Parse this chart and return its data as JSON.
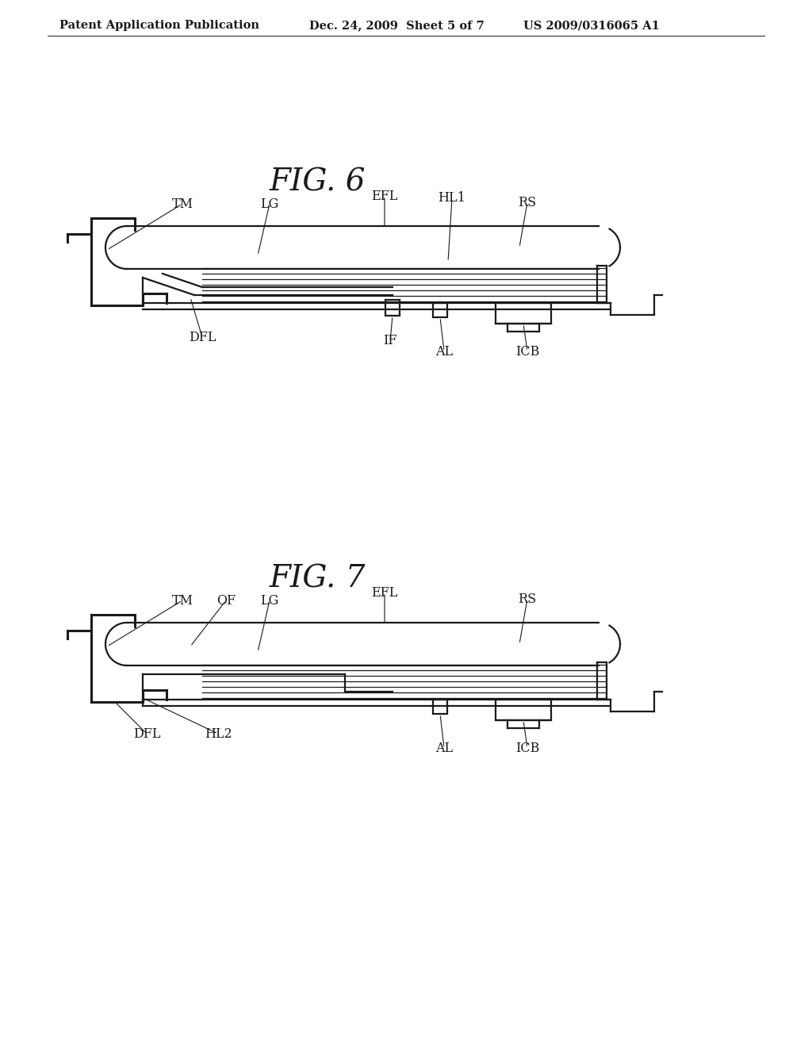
{
  "background_color": "#ffffff",
  "header_text": "Patent Application Publication",
  "header_date": "Dec. 24, 2009  Sheet 5 of 7",
  "header_patent": "US 2009/0316065 A1",
  "fig6_title": "FIG. 6",
  "fig7_title": "FIG. 7",
  "line_color": "#1a1a1a",
  "text_color": "#1a1a1a",
  "header_fontsize": 10.5,
  "fig_title_fontsize": 28,
  "label_fontsize": 11.5
}
